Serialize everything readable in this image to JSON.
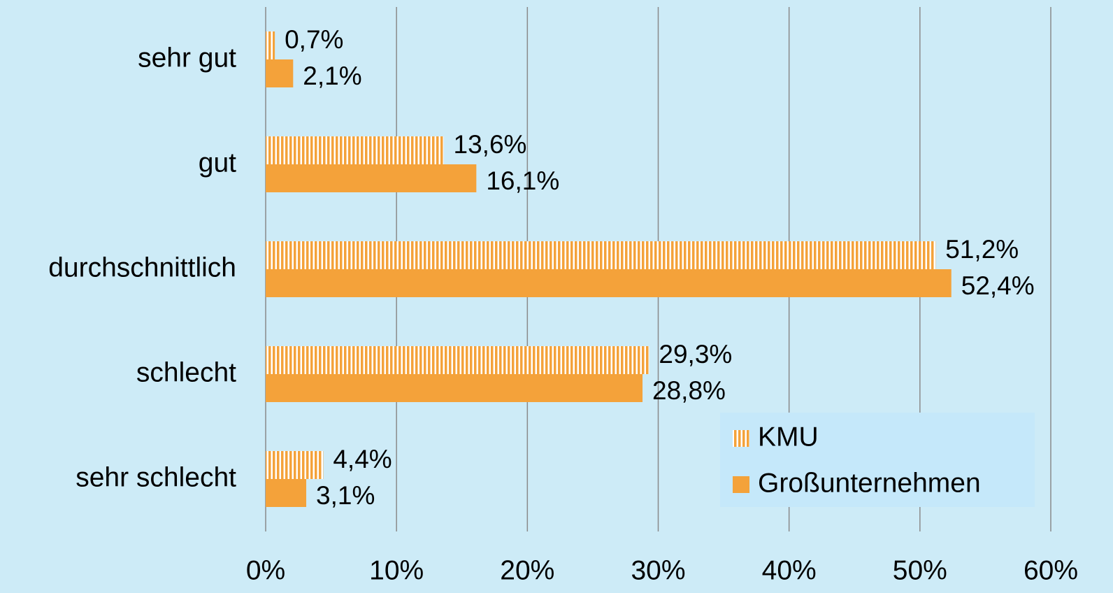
{
  "chart_data": {
    "type": "hbar",
    "categories": [
      "sehr gut",
      "gut",
      "durchschnittlich",
      "schlecht",
      "sehr schlecht"
    ],
    "series": [
      {
        "name": "KMU",
        "color": "#f4a23a",
        "pattern": "vertical-stripes",
        "values": [
          0.7,
          13.6,
          51.2,
          29.3,
          4.4
        ],
        "value_labels": [
          "0,7%",
          "13,6%",
          "51,2%",
          "29,3%",
          "4,4%"
        ]
      },
      {
        "name": "Großunternehmen",
        "color": "#f4a23a",
        "values": [
          2.1,
          16.1,
          52.4,
          28.8,
          3.1
        ],
        "value_labels": [
          "2,1%",
          "16,1%",
          "52,4%",
          "28,8%",
          "3,1%"
        ]
      }
    ],
    "xlim": [
      0,
      60
    ],
    "xticks": [
      {
        "value": 0,
        "label": "0%"
      },
      {
        "value": 10,
        "label": "10%"
      },
      {
        "value": 20,
        "label": "20%"
      },
      {
        "value": 30,
        "label": "30%"
      },
      {
        "value": 40,
        "label": "40%"
      },
      {
        "value": 50,
        "label": "50%"
      },
      {
        "value": 60,
        "label": "60%"
      }
    ],
    "grid": true,
    "legend": "lower right"
  }
}
